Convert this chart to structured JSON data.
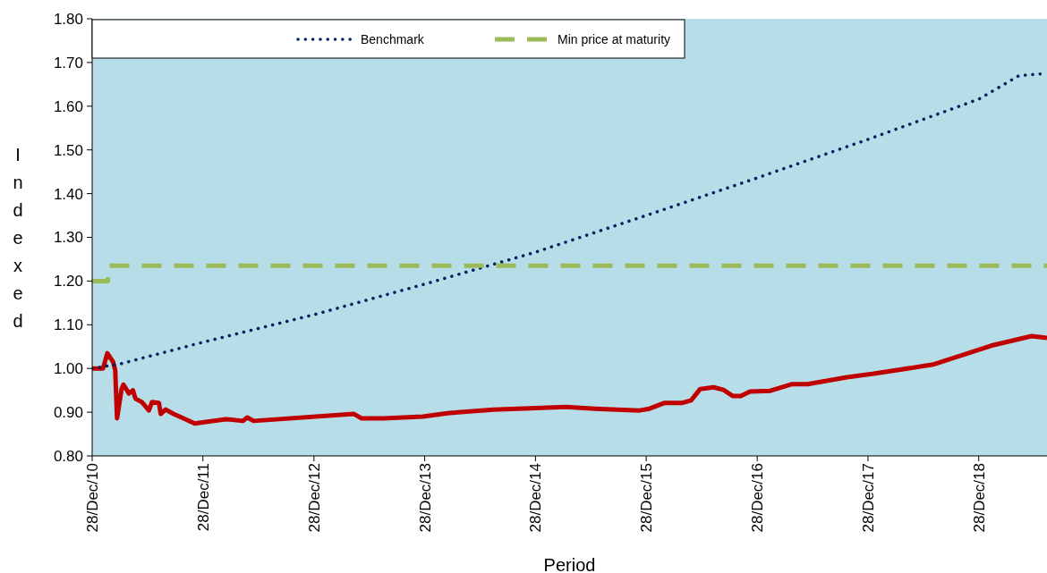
{
  "chart_data": {
    "type": "line",
    "xlabel": "Period",
    "ylabel": "Indexed",
    "xlim": [
      "2010-12-28",
      "2019-08-10"
    ],
    "xticks": [
      {
        "value": "2010-12-28",
        "label": "28/Dec/10"
      },
      {
        "value": "2011-12-28",
        "label": "28/Dec/11"
      },
      {
        "value": "2012-12-28",
        "label": "28/Dec/12"
      },
      {
        "value": "2013-12-28",
        "label": "28/Dec/13"
      },
      {
        "value": "2014-12-28",
        "label": "28/Dec/14"
      },
      {
        "value": "2015-12-28",
        "label": "28/Dec/15"
      },
      {
        "value": "2016-12-28",
        "label": "28/Dec/16"
      },
      {
        "value": "2017-12-28",
        "label": "28/Dec/17"
      },
      {
        "value": "2018-12-28",
        "label": "28/Dec/18"
      }
    ],
    "ylim": [
      0.8,
      1.8
    ],
    "yticks": [
      {
        "value": 0.8,
        "label": "0.80"
      },
      {
        "value": 0.9,
        "label": "0.90"
      },
      {
        "value": 1.0,
        "label": "1.00"
      },
      {
        "value": 1.1,
        "label": "1.10"
      },
      {
        "value": 1.2,
        "label": "1.20"
      },
      {
        "value": 1.3,
        "label": "1.30"
      },
      {
        "value": 1.4,
        "label": "1.40"
      },
      {
        "value": 1.5,
        "label": "1.50"
      },
      {
        "value": 1.6,
        "label": "1.60"
      },
      {
        "value": 1.7,
        "label": "1.70"
      },
      {
        "value": 1.8,
        "label": "1.80"
      }
    ],
    "grid": false,
    "legend": "top left",
    "series": [
      {
        "color": "#c00000",
        "line_style": "solid",
        "x": [
          "2010-12-28",
          "2011-02-02",
          "2011-02-16",
          "2011-03-07",
          "2011-03-14",
          "2011-03-20",
          "2011-04-04",
          "2011-04-10",
          "2011-04-28",
          "2011-05-11",
          "2011-05-20",
          "2011-06-10",
          "2011-07-03",
          "2011-07-13",
          "2011-08-05",
          "2011-08-11",
          "2011-08-27",
          "2011-09-22",
          "2011-10-25",
          "2011-12-01",
          "2012-03-12",
          "2012-05-08",
          "2012-05-22",
          "2012-06-12",
          "2013-05-09",
          "2013-06-02",
          "2013-08-15",
          "2013-12-22",
          "2014-03-19",
          "2014-08-12",
          "2015-04-08",
          "2015-07-12",
          "2015-12-06",
          "2016-01-08",
          "2016-02-25",
          "2016-04-23",
          "2016-05-24",
          "2016-06-23",
          "2016-08-06",
          "2016-09-08",
          "2016-10-08",
          "2016-11-04",
          "2016-12-04",
          "2017-02-09",
          "2017-04-20",
          "2017-06-12",
          "2017-10-20",
          "2018-01-16",
          "2018-07-30",
          "2019-02-06",
          "2019-06-20",
          "2019-08-10"
        ],
        "values": [
          1.0,
          1.0,
          1.035,
          1.015,
          0.996,
          0.886,
          0.953,
          0.963,
          0.943,
          0.95,
          0.931,
          0.923,
          0.904,
          0.923,
          0.921,
          0.896,
          0.906,
          0.896,
          0.886,
          0.874,
          0.884,
          0.88,
          0.888,
          0.88,
          0.896,
          0.886,
          0.886,
          0.89,
          0.898,
          0.906,
          0.912,
          0.908,
          0.904,
          0.908,
          0.921,
          0.921,
          0.927,
          0.953,
          0.957,
          0.951,
          0.937,
          0.937,
          0.947,
          0.949,
          0.964,
          0.964,
          0.98,
          0.988,
          1.009,
          1.052,
          1.074,
          1.07
        ]
      },
      {
        "name": "Benchmark",
        "color": "#002060",
        "line_style": "dotted",
        "x": [
          "2010-12-28",
          "2011-03-28",
          "2011-12-28",
          "2012-12-28",
          "2013-12-28",
          "2014-12-28",
          "2015-12-28",
          "2016-12-28",
          "2017-12-28",
          "2018-12-28",
          "2019-05-10",
          "2019-08-10"
        ],
        "values": [
          1.0,
          1.01,
          1.06,
          1.123,
          1.193,
          1.266,
          1.35,
          1.436,
          1.524,
          1.616,
          1.67,
          1.675
        ]
      },
      {
        "name": "Min price at maturity",
        "color": "#9bbb59",
        "line_style": "dashed",
        "x": [
          "2010-12-28",
          "2011-02-18",
          "2011-02-20",
          "2019-08-10"
        ],
        "values": [
          1.2,
          1.2,
          1.235,
          1.235
        ]
      }
    ]
  }
}
